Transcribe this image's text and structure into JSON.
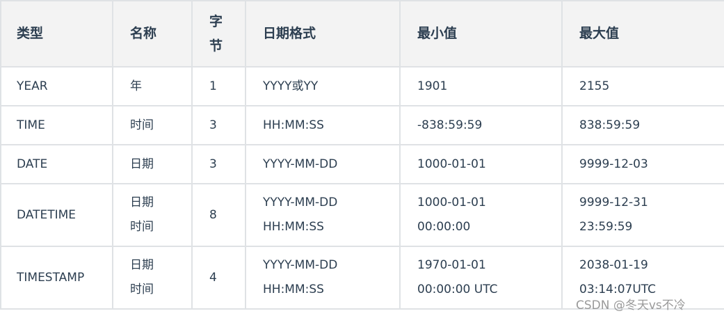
{
  "headers": [
    "类型",
    "名称",
    "字\n节",
    "日期格式",
    "最小值",
    "最大值"
  ],
  "header_lines": {
    "bytes": [
      "字",
      "节"
    ]
  },
  "rows": [
    {
      "type": "YEAR",
      "name": [
        "年"
      ],
      "bytes": "1",
      "format": [
        "YYYY或YY"
      ],
      "min": [
        "1901"
      ],
      "max": [
        "2155"
      ]
    },
    {
      "type": "TIME",
      "name": [
        "时间"
      ],
      "bytes": "3",
      "format": [
        "HH:MM:SS"
      ],
      "min": [
        "-838:59:59"
      ],
      "max": [
        "838:59:59"
      ]
    },
    {
      "type": "DATE",
      "name": [
        "日期"
      ],
      "bytes": "3",
      "format": [
        "YYYY-MM-DD"
      ],
      "min": [
        "1000-01-01"
      ],
      "max": [
        "9999-12-03"
      ]
    },
    {
      "type": "DATETIME",
      "name": [
        "日期",
        "时间"
      ],
      "bytes": "8",
      "format": [
        "YYYY-MM-DD",
        "HH:MM:SS"
      ],
      "min": [
        "1000-01-01",
        "00:00:00"
      ],
      "max": [
        "9999-12-31",
        "23:59:59"
      ]
    },
    {
      "type": "TIMESTAMP",
      "name": [
        "日期",
        "时间"
      ],
      "bytes": "4",
      "format": [
        "YYYY-MM-DD",
        "HH:MM:SS"
      ],
      "min": [
        "1970-01-01",
        "00:00:00 UTC"
      ],
      "max": [
        "2038-01-19",
        "03:14:07UTC"
      ]
    }
  ],
  "watermark": "CSDN @冬天vs不冷"
}
